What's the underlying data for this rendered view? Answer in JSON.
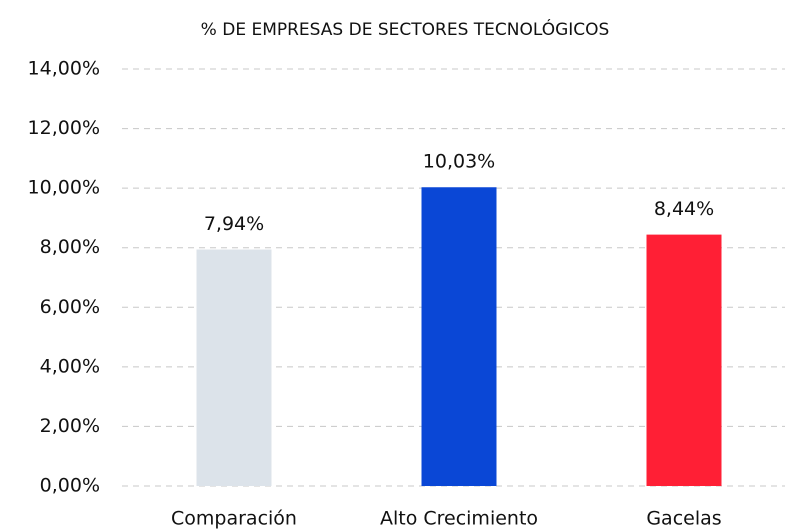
{
  "chart_data": {
    "type": "bar",
    "title": "% DE EMPRESAS DE SECTORES TECNOLÓGICOS",
    "categories": [
      "Comparación",
      "Alto Crecimiento",
      "Gacelas"
    ],
    "values": [
      7.94,
      10.03,
      8.44
    ],
    "value_labels": [
      "7,94%",
      "10,03%",
      "8,44%"
    ],
    "colors": [
      "#dce3ea",
      "#0a47d6",
      "#ff1f35"
    ],
    "ylim": [
      0,
      14
    ],
    "yticks": [
      {
        "value": 0,
        "label": "0,00%"
      },
      {
        "value": 2,
        "label": "2,00%"
      },
      {
        "value": 4,
        "label": "4,00%"
      },
      {
        "value": 6,
        "label": "6,00%"
      },
      {
        "value": 8,
        "label": "8,00%"
      },
      {
        "value": 10,
        "label": "10,00%"
      },
      {
        "value": 12,
        "label": "12,00%"
      },
      {
        "value": 14,
        "label": "14,00%"
      }
    ],
    "grid": true
  }
}
